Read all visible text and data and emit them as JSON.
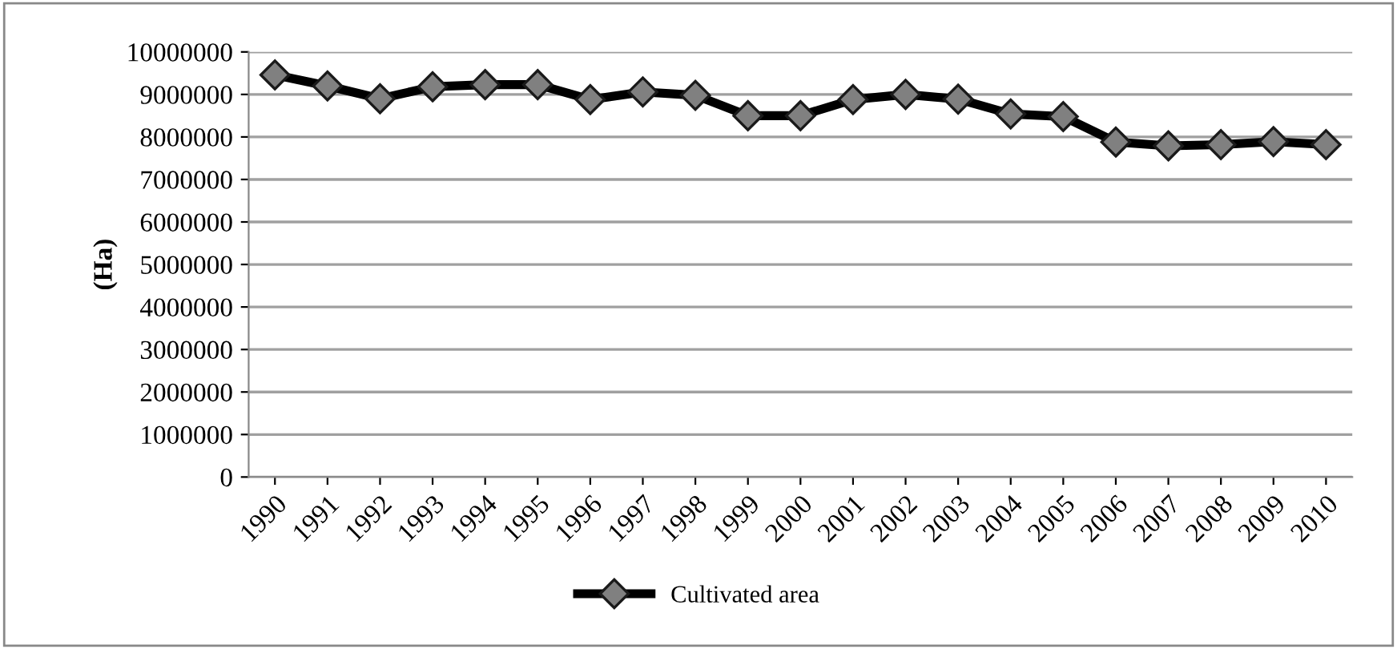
{
  "chart_data": {
    "type": "line",
    "ylabel": "(Ha)",
    "categories": [
      "1990",
      "1991",
      "1992",
      "1993",
      "1994",
      "1995",
      "1996",
      "1997",
      "1998",
      "1999",
      "2000",
      "2001",
      "2002",
      "2003",
      "2004",
      "2005",
      "2006",
      "2007",
      "2008",
      "2009",
      "2010"
    ],
    "series": [
      {
        "name": "Cultivated area",
        "color": "#000000",
        "values": [
          9460000,
          9200000,
          8900000,
          9180000,
          9230000,
          9230000,
          8880000,
          9060000,
          8980000,
          8500000,
          8500000,
          8880000,
          9000000,
          8890000,
          8540000,
          8480000,
          7880000,
          7790000,
          7820000,
          7890000,
          7820000
        ]
      }
    ],
    "ylim": [
      0,
      10000000
    ],
    "yticks": [
      0,
      1000000,
      2000000,
      3000000,
      4000000,
      5000000,
      6000000,
      7000000,
      8000000,
      9000000,
      10000000
    ],
    "grid": "y",
    "legend": "bottom",
    "marker": "diamond",
    "line_style": "solid"
  }
}
